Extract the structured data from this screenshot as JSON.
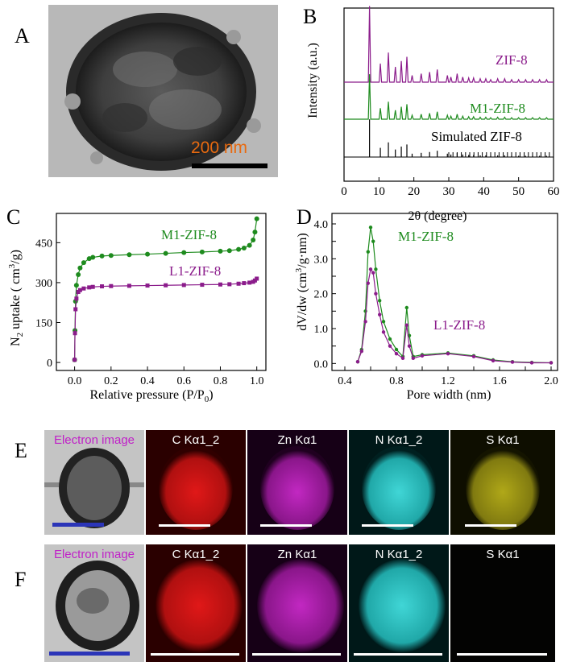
{
  "panel_labels": {
    "A": "A",
    "B": "B",
    "C": "C",
    "D": "D",
    "E": "E",
    "F": "F"
  },
  "tem": {
    "scale_text": "200 nm"
  },
  "colors": {
    "purple": "#8b1c8b",
    "green": "#1e8b1e",
    "black": "#000000",
    "orange": "#e86a10",
    "magenta": "#c020c8"
  },
  "panel_B": {
    "ylabel": "Intensity (a.u.)",
    "xlabel": "2θ (degree)",
    "xlim": [
      0,
      60
    ],
    "xticks": [
      "0",
      "10",
      "20",
      "30",
      "40",
      "50",
      "60"
    ],
    "series_labels": [
      "ZIF-8",
      "M1-ZIF-8",
      "Simulated ZIF-8"
    ]
  },
  "chart_data": [
    {
      "type": "line",
      "title": "",
      "xlabel": "Relative pressure (P/P0)",
      "ylabel": "N2 uptake (cm3/g)",
      "xlim": [
        -0.1,
        1.05
      ],
      "ylim": [
        -30,
        560
      ],
      "xticks": [
        "0.0",
        "0.2",
        "0.4",
        "0.6",
        "0.8",
        "1.0"
      ],
      "yticks": [
        "0",
        "150",
        "300",
        "450"
      ],
      "series": [
        {
          "name": "M1-ZIF-8",
          "color": "#1e8b1e",
          "x": [
            0.0,
            0.002,
            0.005,
            0.01,
            0.02,
            0.03,
            0.05,
            0.08,
            0.1,
            0.15,
            0.2,
            0.3,
            0.4,
            0.5,
            0.6,
            0.7,
            0.8,
            0.85,
            0.9,
            0.93,
            0.96,
            0.98,
            0.99,
            1.0
          ],
          "y": [
            10,
            120,
            230,
            290,
            330,
            355,
            375,
            390,
            395,
            400,
            402,
            405,
            407,
            410,
            413,
            415,
            418,
            420,
            425,
            430,
            440,
            460,
            490,
            540
          ]
        },
        {
          "name": "L1-ZIF-8",
          "color": "#8b1c8b",
          "x": [
            0.0,
            0.002,
            0.005,
            0.01,
            0.02,
            0.03,
            0.05,
            0.08,
            0.1,
            0.15,
            0.2,
            0.3,
            0.4,
            0.5,
            0.6,
            0.7,
            0.8,
            0.85,
            0.9,
            0.93,
            0.96,
            0.98,
            0.99,
            1.0
          ],
          "y": [
            10,
            110,
            200,
            240,
            265,
            272,
            278,
            282,
            284,
            286,
            287,
            288,
            289,
            290,
            291,
            292,
            293,
            294,
            296,
            298,
            300,
            303,
            308,
            315
          ]
        }
      ]
    },
    {
      "type": "line",
      "title": "",
      "xlabel": "Pore width (nm)",
      "ylabel": "dV/dw (cm3/g·nm)",
      "xlim": [
        0.3,
        2.05
      ],
      "ylim": [
        -0.2,
        4.3
      ],
      "xticks": [
        "0.4",
        "0.6",
        "0.8",
        "1.0",
        "1.2",
        "1.4",
        "1.6",
        "1.8",
        "2.0"
      ],
      "yticks": [
        "0.0",
        "0.5",
        "1.0",
        "1.5",
        "2.0",
        "2.5",
        "3.0",
        "3.5",
        "4.0"
      ],
      "series": [
        {
          "name": "M1-ZIF-8",
          "color": "#1e8b1e",
          "x": [
            0.5,
            0.53,
            0.56,
            0.58,
            0.6,
            0.62,
            0.64,
            0.67,
            0.7,
            0.75,
            0.8,
            0.85,
            0.88,
            0.9,
            0.93,
            1.0,
            1.2,
            1.4,
            1.55,
            1.7,
            1.85,
            2.0
          ],
          "y": [
            0.05,
            0.4,
            1.5,
            3.2,
            3.9,
            3.5,
            2.7,
            1.8,
            1.2,
            0.7,
            0.4,
            0.2,
            1.6,
            0.8,
            0.2,
            0.25,
            0.3,
            0.22,
            0.1,
            0.05,
            0.03,
            0.02
          ]
        },
        {
          "name": "L1-ZIF-8",
          "color": "#8b1c8b",
          "x": [
            0.5,
            0.53,
            0.56,
            0.58,
            0.6,
            0.62,
            0.64,
            0.67,
            0.7,
            0.75,
            0.8,
            0.85,
            0.88,
            0.9,
            0.93,
            1.0,
            1.2,
            1.4,
            1.55,
            1.7,
            1.85,
            2.0
          ],
          "y": [
            0.05,
            0.35,
            1.2,
            2.3,
            2.7,
            2.6,
            2.0,
            1.4,
            0.9,
            0.5,
            0.28,
            0.15,
            1.1,
            0.5,
            0.15,
            0.22,
            0.28,
            0.2,
            0.08,
            0.04,
            0.02,
            0.02
          ]
        }
      ]
    }
  ],
  "eds_E": [
    {
      "caption": "Electron image"
    },
    {
      "caption": "C Kα1_2"
    },
    {
      "caption": "Zn Kα1"
    },
    {
      "caption": "N Kα1_2"
    },
    {
      "caption": "S Kα1"
    }
  ],
  "eds_F": [
    {
      "caption": "Electron image"
    },
    {
      "caption": "C Kα1_2"
    },
    {
      "caption": "Zn Kα1"
    },
    {
      "caption": "N Kα1_2"
    },
    {
      "caption": "S Kα1"
    }
  ]
}
